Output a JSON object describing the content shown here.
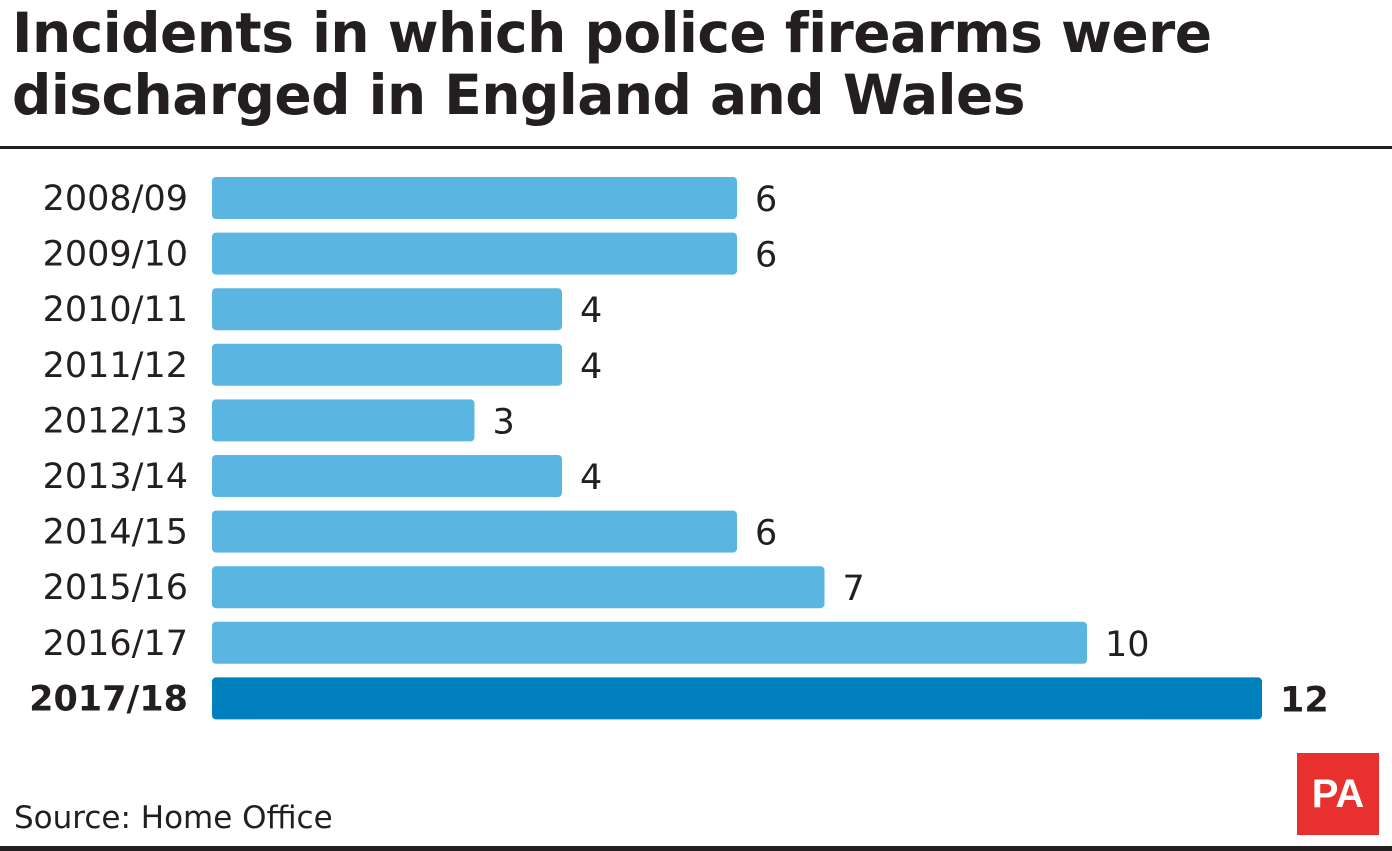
{
  "title": "Incidents in which police firearms were discharged in England and Wales",
  "source": "Source: Home Office",
  "logo_text": "PA",
  "colors": {
    "bar": "#5ab6e0",
    "highlight": "#0080bd",
    "logo": "#e8312f"
  },
  "chart_data": {
    "type": "bar",
    "orientation": "horizontal",
    "title": "Incidents in which police firearms were discharged in England and Wales",
    "categories": [
      "2008/09",
      "2009/10",
      "2010/11",
      "2011/12",
      "2012/13",
      "2013/14",
      "2014/15",
      "2015/16",
      "2016/17",
      "2017/18"
    ],
    "values": [
      6,
      6,
      4,
      4,
      3,
      4,
      6,
      7,
      10,
      12
    ],
    "highlight_index": 9,
    "xlabel": "",
    "ylabel": "",
    "xlim": [
      0,
      12
    ],
    "grid": false
  }
}
